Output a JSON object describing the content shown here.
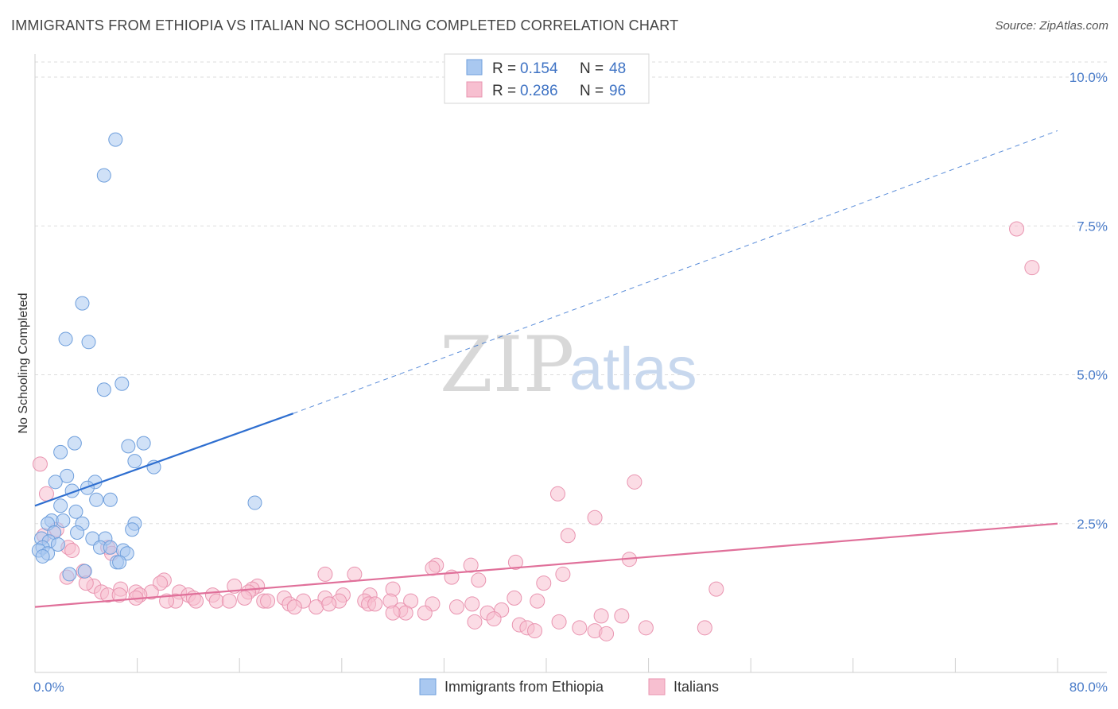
{
  "header": {
    "title": "IMMIGRANTS FROM ETHIOPIA VS ITALIAN NO SCHOOLING COMPLETED CORRELATION CHART",
    "source": "Source: ZipAtlas.com"
  },
  "watermark": {
    "zip": "ZIP",
    "atlas": "atlas"
  },
  "legend": {
    "rows": [
      {
        "r_label": "R =",
        "r_value": "0.154",
        "n_label": "N =",
        "n_value": "48"
      },
      {
        "r_label": "R =",
        "r_value": "0.286",
        "n_label": "N =",
        "n_value": "96"
      }
    ]
  },
  "colors": {
    "ethiopia_fill": "#a9c8f0",
    "ethiopia_stroke": "#6f9fdc",
    "ethiopia_line": "#2f6fd0",
    "italians_fill": "#f7bfd0",
    "italians_stroke": "#e994b0",
    "italians_line": "#e0709a",
    "grid": "#dddddd",
    "tick_text": "#4a7cc9"
  },
  "chart_data": {
    "type": "scatter",
    "title": "IMMIGRANTS FROM ETHIOPIA VS ITALIAN NO SCHOOLING COMPLETED CORRELATION CHART",
    "xlabel": "",
    "ylabel": "No Schooling Completed",
    "xlim": [
      0,
      80
    ],
    "ylim": [
      0,
      10.5
    ],
    "x_tick_labels": [
      "0.0%",
      "80.0%"
    ],
    "y_ticks": [
      2.5,
      5.0,
      7.5,
      10.0
    ],
    "y_tick_labels": [
      "2.5%",
      "5.0%",
      "7.5%",
      "10.0%"
    ],
    "grid": true,
    "legend_placement": "top-center",
    "series": [
      {
        "name": "Immigrants from Ethiopia",
        "R": 0.154,
        "N": 48,
        "trend": {
          "x": [
            0,
            20.2
          ],
          "y": [
            2.8,
            4.35
          ],
          "extended_to": [
            80,
            9.1
          ]
        },
        "points": [
          [
            6.3,
            8.95
          ],
          [
            5.4,
            8.35
          ],
          [
            3.7,
            6.2
          ],
          [
            2.4,
            5.6
          ],
          [
            4.2,
            5.55
          ],
          [
            6.8,
            4.85
          ],
          [
            5.4,
            4.75
          ],
          [
            3.1,
            3.85
          ],
          [
            8.5,
            3.85
          ],
          [
            7.3,
            3.8
          ],
          [
            2.0,
            3.7
          ],
          [
            7.8,
            3.55
          ],
          [
            9.3,
            3.45
          ],
          [
            2.5,
            3.3
          ],
          [
            1.6,
            3.2
          ],
          [
            4.7,
            3.2
          ],
          [
            4.1,
            3.1
          ],
          [
            2.9,
            3.05
          ],
          [
            4.8,
            2.9
          ],
          [
            5.9,
            2.9
          ],
          [
            17.2,
            2.85
          ],
          [
            2.0,
            2.8
          ],
          [
            3.2,
            2.7
          ],
          [
            1.3,
            2.55
          ],
          [
            2.2,
            2.55
          ],
          [
            3.7,
            2.5
          ],
          [
            1.0,
            2.5
          ],
          [
            7.8,
            2.5
          ],
          [
            7.6,
            2.4
          ],
          [
            3.3,
            2.35
          ],
          [
            1.5,
            2.35
          ],
          [
            0.5,
            2.25
          ],
          [
            4.5,
            2.25
          ],
          [
            5.5,
            2.25
          ],
          [
            1.1,
            2.2
          ],
          [
            1.8,
            2.15
          ],
          [
            0.6,
            2.1
          ],
          [
            5.1,
            2.1
          ],
          [
            5.9,
            2.1
          ],
          [
            6.9,
            2.05
          ],
          [
            0.3,
            2.05
          ],
          [
            1.0,
            2.0
          ],
          [
            7.2,
            2.0
          ],
          [
            0.6,
            1.95
          ],
          [
            6.4,
            1.85
          ],
          [
            6.6,
            1.85
          ],
          [
            3.9,
            1.7
          ],
          [
            2.7,
            1.65
          ]
        ]
      },
      {
        "name": "Italians",
        "R": 0.286,
        "N": 96,
        "trend": {
          "x": [
            0,
            80
          ],
          "y": [
            1.1,
            2.5
          ]
        },
        "points": [
          [
            76.8,
            7.45
          ],
          [
            78.0,
            6.8
          ],
          [
            0.4,
            3.5
          ],
          [
            46.9,
            3.2
          ],
          [
            40.9,
            3.0
          ],
          [
            0.9,
            3.0
          ],
          [
            43.8,
            2.6
          ],
          [
            1.7,
            2.4
          ],
          [
            41.7,
            2.3
          ],
          [
            0.7,
            2.3
          ],
          [
            2.6,
            2.1
          ],
          [
            2.9,
            2.05
          ],
          [
            5.7,
            2.1
          ],
          [
            6.0,
            2.0
          ],
          [
            46.5,
            1.9
          ],
          [
            37.6,
            1.85
          ],
          [
            34.1,
            1.8
          ],
          [
            31.4,
            1.8
          ],
          [
            31.1,
            1.75
          ],
          [
            3.8,
            1.7
          ],
          [
            22.7,
            1.65
          ],
          [
            25.0,
            1.65
          ],
          [
            32.6,
            1.6
          ],
          [
            41.3,
            1.65
          ],
          [
            34.7,
            1.55
          ],
          [
            2.5,
            1.6
          ],
          [
            10.1,
            1.55
          ],
          [
            39.8,
            1.5
          ],
          [
            9.8,
            1.5
          ],
          [
            4.6,
            1.45
          ],
          [
            17.4,
            1.45
          ],
          [
            15.6,
            1.45
          ],
          [
            4.0,
            1.5
          ],
          [
            6.7,
            1.4
          ],
          [
            17.0,
            1.4
          ],
          [
            53.3,
            1.4
          ],
          [
            16.7,
            1.35
          ],
          [
            28.0,
            1.4
          ],
          [
            9.1,
            1.35
          ],
          [
            7.9,
            1.35
          ],
          [
            5.2,
            1.35
          ],
          [
            5.7,
            1.3
          ],
          [
            11.3,
            1.35
          ],
          [
            12.0,
            1.3
          ],
          [
            13.9,
            1.3
          ],
          [
            6.6,
            1.3
          ],
          [
            24.1,
            1.3
          ],
          [
            26.2,
            1.3
          ],
          [
            8.2,
            1.3
          ],
          [
            14.2,
            1.2
          ],
          [
            21.0,
            1.2
          ],
          [
            22.7,
            1.25
          ],
          [
            12.4,
            1.25
          ],
          [
            16.4,
            1.25
          ],
          [
            19.5,
            1.25
          ],
          [
            7.9,
            1.25
          ],
          [
            37.5,
            1.25
          ],
          [
            39.3,
            1.2
          ],
          [
            29.4,
            1.2
          ],
          [
            34.2,
            1.15
          ],
          [
            12.6,
            1.2
          ],
          [
            17.9,
            1.2
          ],
          [
            11.0,
            1.2
          ],
          [
            15.2,
            1.2
          ],
          [
            18.2,
            1.2
          ],
          [
            23.8,
            1.2
          ],
          [
            25.8,
            1.2
          ],
          [
            27.8,
            1.2
          ],
          [
            31.1,
            1.15
          ],
          [
            19.9,
            1.15
          ],
          [
            20.3,
            1.1
          ],
          [
            22.0,
            1.1
          ],
          [
            23.0,
            1.15
          ],
          [
            26.1,
            1.15
          ],
          [
            26.6,
            1.15
          ],
          [
            10.3,
            1.2
          ],
          [
            28.6,
            1.05
          ],
          [
            29.0,
            1.0
          ],
          [
            30.5,
            1.0
          ],
          [
            33.0,
            1.1
          ],
          [
            35.4,
            1.0
          ],
          [
            36.5,
            1.05
          ],
          [
            28.0,
            1.0
          ],
          [
            35.9,
            0.9
          ],
          [
            41.0,
            0.85
          ],
          [
            44.3,
            0.95
          ],
          [
            45.9,
            0.95
          ],
          [
            34.4,
            0.85
          ],
          [
            37.9,
            0.8
          ],
          [
            38.5,
            0.75
          ],
          [
            39.1,
            0.7
          ],
          [
            42.6,
            0.75
          ],
          [
            43.8,
            0.7
          ],
          [
            47.8,
            0.75
          ],
          [
            52.4,
            0.75
          ],
          [
            44.7,
            0.65
          ]
        ]
      }
    ]
  },
  "bottom_legend": {
    "items": [
      "Immigrants from Ethiopia",
      "Italians"
    ]
  }
}
